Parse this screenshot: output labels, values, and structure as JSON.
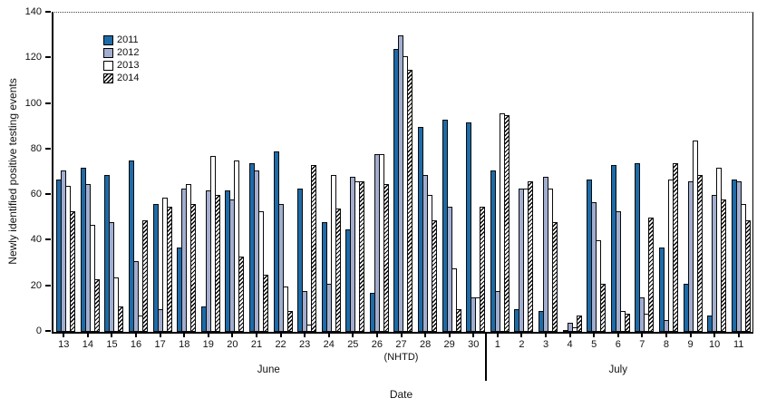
{
  "chart_data": {
    "type": "bar",
    "title": "",
    "ylabel": "Newly identified positive testing events",
    "xlabel": "Date",
    "ylim": [
      0,
      140
    ],
    "yticks": [
      0,
      20,
      40,
      60,
      80,
      100,
      120,
      140
    ],
    "grid": false,
    "legend_position": "top-left-inside",
    "categories": [
      "13",
      "14",
      "15",
      "16",
      "17",
      "18",
      "19",
      "20",
      "21",
      "22",
      "23",
      "24",
      "25",
      "26",
      "27",
      "28",
      "29",
      "30",
      "1",
      "2",
      "3",
      "4",
      "5",
      "6",
      "7",
      "8",
      "9",
      "10",
      "11"
    ],
    "x_note": {
      "index": 14,
      "label": "(NHTD)"
    },
    "month_groups": [
      {
        "label": "June",
        "start": 0,
        "end": 17
      },
      {
        "label": "July",
        "start": 18,
        "end": 28
      }
    ],
    "divider_after_index": 17,
    "series": [
      {
        "name": "2011",
        "style": "solid",
        "color": "#1E6BA8",
        "values": [
          67,
          72,
          69,
          75,
          56,
          37,
          11,
          62,
          74,
          79,
          63,
          48,
          45,
          17,
          124,
          90,
          93,
          92,
          71,
          10,
          9,
          1,
          67,
          73,
          74,
          37,
          21,
          7,
          67
        ]
      },
      {
        "name": "2012",
        "style": "solid",
        "color": "#A2AECF",
        "values": [
          71,
          65,
          48,
          31,
          10,
          63,
          62,
          58,
          71,
          56,
          18,
          21,
          68,
          78,
          130,
          69,
          55,
          15,
          18,
          63,
          68,
          4,
          57,
          53,
          15,
          5,
          66,
          60,
          66
        ]
      },
      {
        "name": "2013",
        "style": "solid",
        "color": "#FFFFFF",
        "values": [
          64,
          47,
          24,
          7,
          59,
          65,
          77,
          75,
          53,
          20,
          3,
          69,
          66,
          78,
          121,
          60,
          28,
          15,
          96,
          63,
          63,
          2,
          40,
          9,
          8,
          67,
          84,
          72,
          56
        ]
      },
      {
        "name": "2014",
        "style": "hatch",
        "color": "#FFFFFF",
        "hatch_color": "#000000",
        "values": [
          53,
          23,
          11,
          49,
          55,
          56,
          60,
          33,
          25,
          9,
          73,
          54,
          66,
          65,
          115,
          49,
          10,
          55,
          95,
          66,
          48,
          7,
          21,
          8,
          50,
          74,
          69,
          58,
          49
        ]
      }
    ]
  }
}
